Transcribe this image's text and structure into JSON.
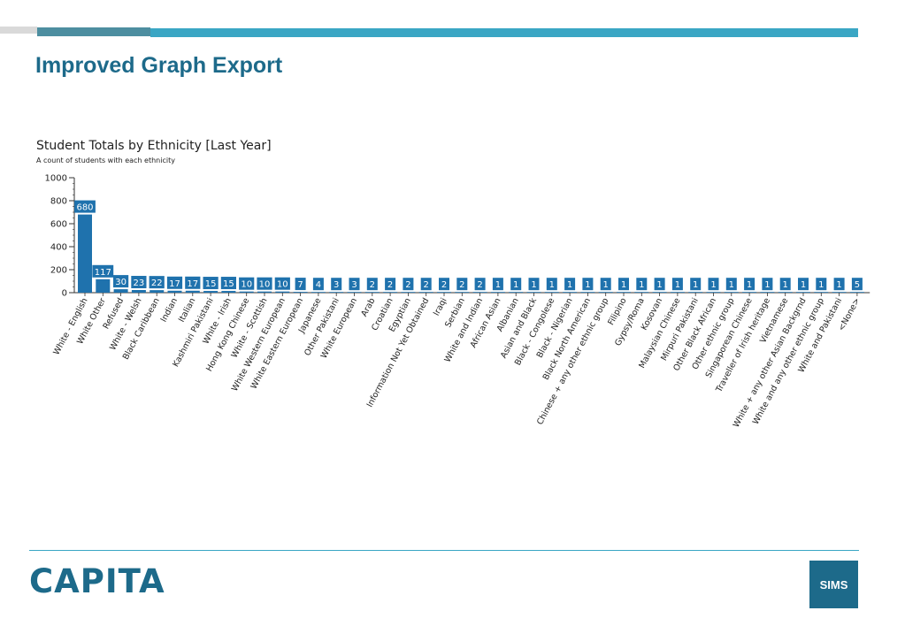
{
  "slide": {
    "title": "Improved Graph Export"
  },
  "footer": {
    "logo": "CAPITA",
    "badge": "SIMS"
  },
  "colors": {
    "accent": "#3aa6c4",
    "brand": "#1d6a8a",
    "bar": "#1f72ad"
  },
  "chart_data": {
    "type": "bar",
    "title": "Student Totals by Ethnicity [Last Year]",
    "subtitle": "A count of students with each ethnicity",
    "xlabel": "",
    "ylabel": "",
    "ylim": [
      0,
      1000
    ],
    "yticks": [
      0,
      200,
      400,
      600,
      800,
      1000
    ],
    "grid": false,
    "categories": [
      "White - English",
      "White Other",
      "Refused",
      "White - Welsh",
      "Black Caribbean",
      "Indian",
      "Italian",
      "Kashmiri Pakistani",
      "White - Irish",
      "Hong Kong Chinese",
      "White - Scottish",
      "White Western European",
      "White Eastern European",
      "Japanese",
      "Other Pakistani",
      "White European",
      "Arab",
      "Croatian",
      "Egyptian",
      "Information Not Yet Obtained",
      "Iraqi",
      "Serbian",
      "White and Indian",
      "African Asian",
      "Albanian",
      "Asian and Black",
      "Black - Congolese",
      "Black - Nigerian",
      "Black North American",
      "Chinese + any other ethnic group",
      "Filipino",
      "Gypsy/Roma",
      "Kosovan",
      "Malaysian Chinese",
      "Mirpuri Pakistani",
      "Other Black African",
      "Other ethnic group",
      "Singaporean Chinese",
      "Traveller of Irish heritage",
      "Vietnamese",
      "White + any other Asian Backgrnd",
      "White and any other ethnic group",
      "White and Pakistani",
      "<None>"
    ],
    "values": [
      680,
      117,
      30,
      23,
      22,
      17,
      17,
      15,
      15,
      10,
      10,
      10,
      7,
      4,
      3,
      3,
      2,
      2,
      2,
      2,
      2,
      2,
      2,
      1,
      1,
      1,
      1,
      1,
      1,
      1,
      1,
      1,
      1,
      1,
      1,
      1,
      1,
      1,
      1,
      1,
      1,
      1,
      1,
      5
    ]
  }
}
